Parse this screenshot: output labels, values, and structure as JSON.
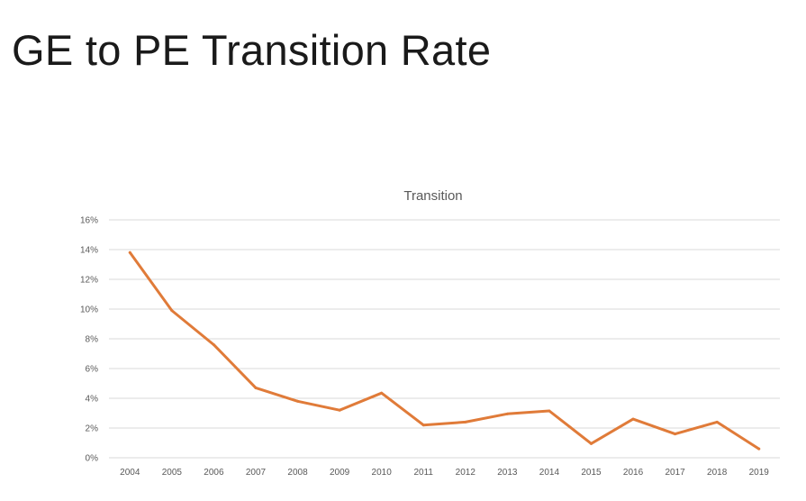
{
  "slide": {
    "title": "GE to PE Transition Rate"
  },
  "colors": {
    "series": "#e07b39",
    "gridline": "#d9d9d9",
    "text": "#595959"
  },
  "chart_data": {
    "type": "line",
    "title": "Transition",
    "xlabel": "",
    "ylabel": "",
    "categories": [
      "2004",
      "2005",
      "2006",
      "2007",
      "2008",
      "2009",
      "2010",
      "2011",
      "2012",
      "2013",
      "2014",
      "2015",
      "2016",
      "2017",
      "2018",
      "2019"
    ],
    "series": [
      {
        "values": [
          13.8,
          9.9,
          7.6,
          4.7,
          3.8,
          3.2,
          4.35,
          2.2,
          2.4,
          2.95,
          3.15,
          0.95,
          2.6,
          1.6,
          2.4,
          0.6
        ]
      }
    ],
    "ylim": [
      0,
      16
    ],
    "yticks": [
      0,
      2,
      4,
      6,
      8,
      10,
      12,
      14,
      16
    ],
    "ytick_format": "percent",
    "grid": true,
    "legend": "none"
  }
}
